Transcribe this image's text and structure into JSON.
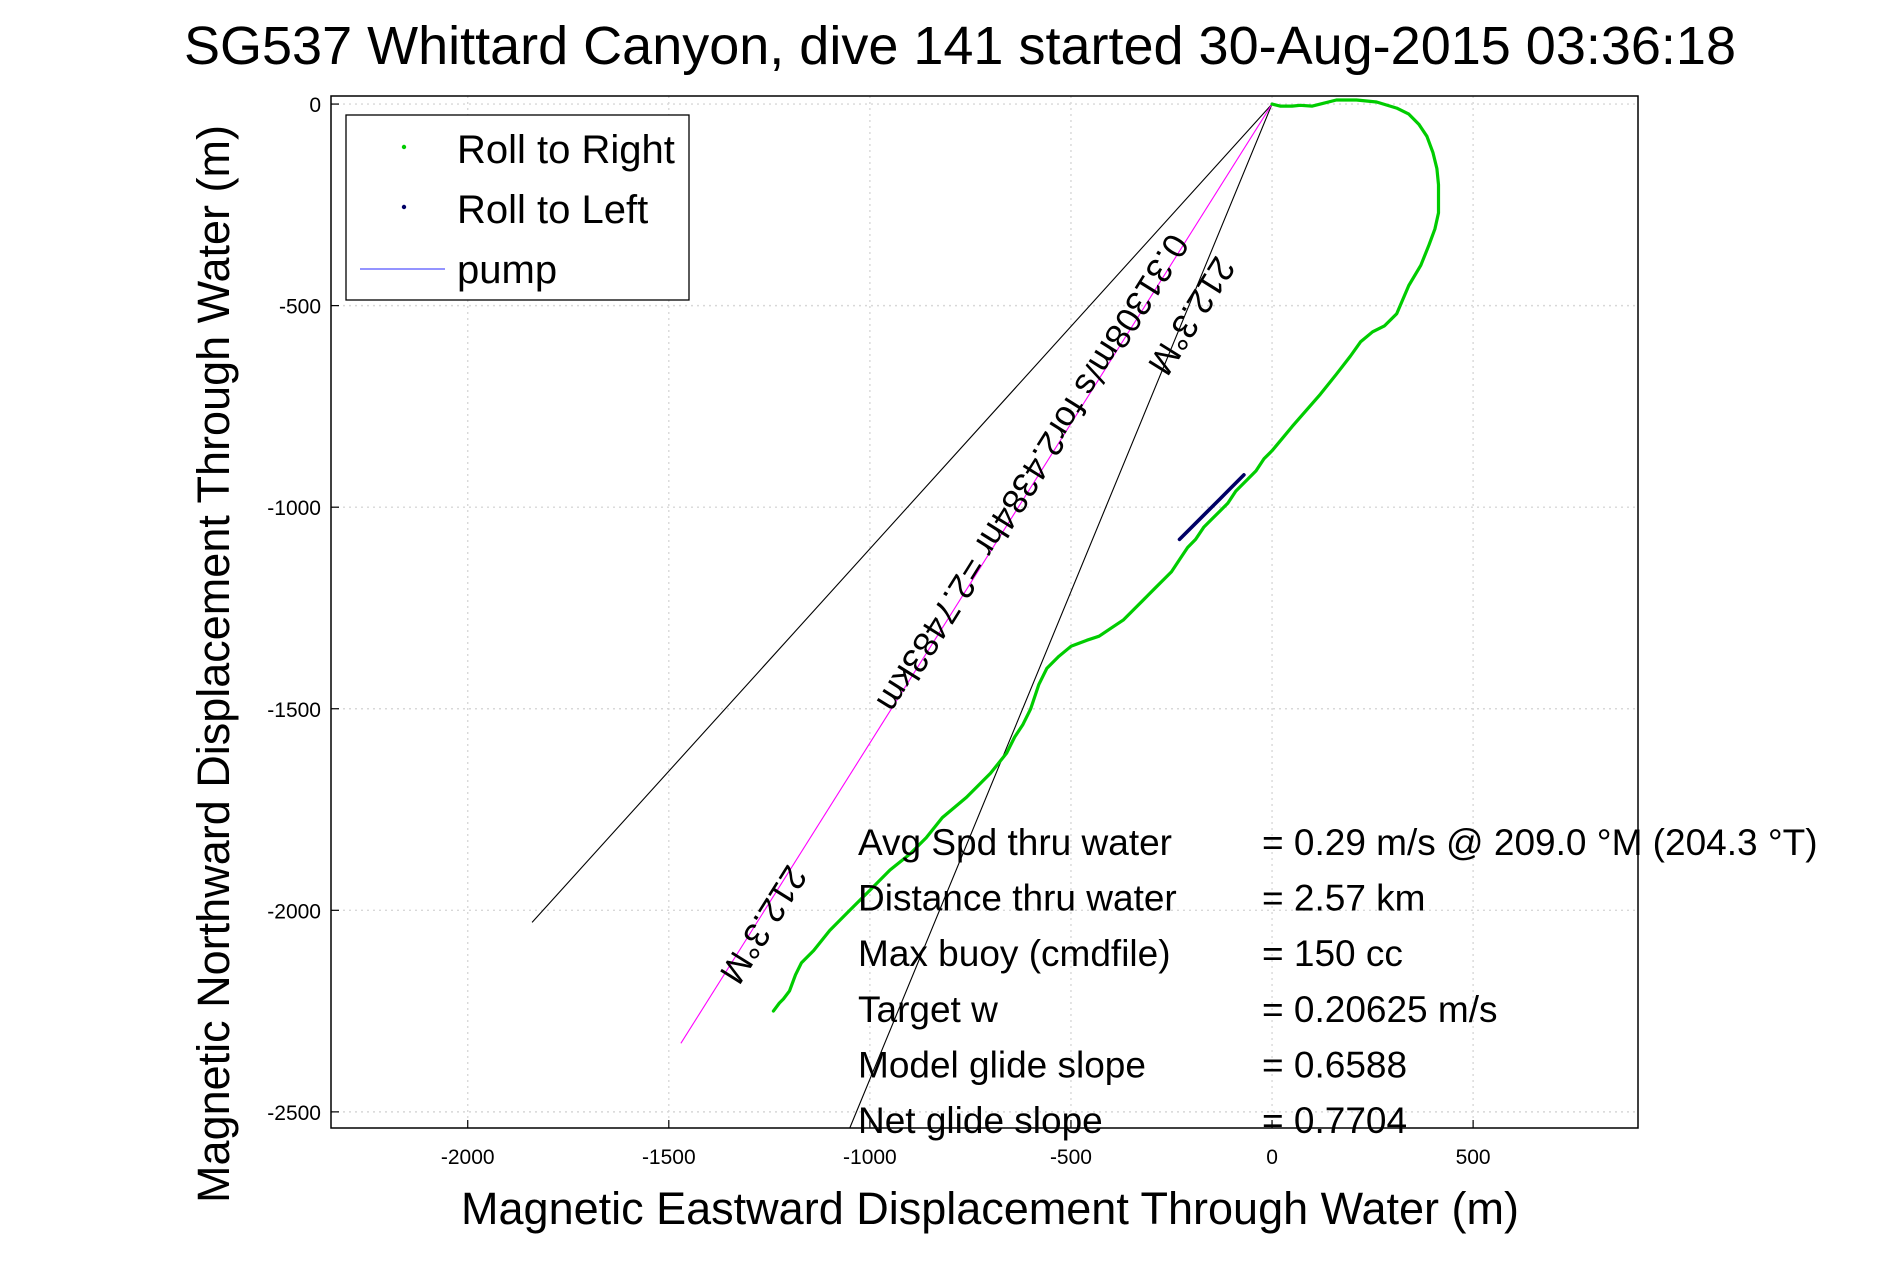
{
  "chart_data": {
    "type": "line",
    "title": "SG537 Whittard Canyon, dive 141 started 30-Aug-2015 03:36:18",
    "xlabel": "Magnetic Eastward Displacement Through Water (m)",
    "ylabel": "Magnetic Northward Displacement Through Water (m)",
    "xlim": [
      -2340,
      910
    ],
    "ylim": [
      -2540,
      20
    ],
    "xticks": [
      -2000,
      -1500,
      -1000,
      -500,
      0,
      500
    ],
    "yticks": [
      0,
      -500,
      -1000,
      -1500,
      -2000,
      -2500
    ],
    "grid": true,
    "legend_position": "top-left",
    "legend": [
      {
        "label": "Roll to Right",
        "color": "#00cc00",
        "marker": "dot"
      },
      {
        "label": "Roll to Left",
        "color": "#000066",
        "marker": "dot"
      },
      {
        "label": "pump",
        "color": "#7070ff",
        "marker": "line"
      }
    ],
    "series": [
      {
        "name": "Roll to Right",
        "color": "#00cc00",
        "x": [
          0,
          20,
          50,
          70,
          100,
          120,
          160,
          210,
          260,
          310,
          340,
          365,
          385,
          400,
          410,
          414,
          414,
          405,
          390,
          370,
          340,
          310,
          280,
          250,
          220,
          195,
          160,
          120,
          85,
          50,
          25,
          0,
          -20,
          -40,
          -60,
          -90,
          -110,
          -130,
          -150,
          -170,
          -190,
          -210,
          -230,
          -250,
          -270,
          -290,
          -310,
          -340,
          -370,
          -400,
          -430,
          -460,
          -500,
          -530,
          -560,
          -580,
          -600,
          -620,
          -640,
          -660,
          -700,
          -760,
          -820,
          -860,
          -900,
          -950,
          -1000,
          -1050,
          -1100,
          -1140,
          -1170,
          -1185,
          -1200,
          -1215,
          -1225,
          -1240
        ],
        "y": [
          0,
          -5,
          -5,
          -3,
          -5,
          0,
          10,
          10,
          5,
          -10,
          -25,
          -50,
          -80,
          -120,
          -160,
          -200,
          -270,
          -310,
          -350,
          -400,
          -450,
          -520,
          -550,
          -565,
          -590,
          -625,
          -670,
          -720,
          -760,
          -800,
          -830,
          -860,
          -880,
          -910,
          -930,
          -960,
          -990,
          -1010,
          -1030,
          -1050,
          -1080,
          -1100,
          -1130,
          -1160,
          -1180,
          -1200,
          -1220,
          -1250,
          -1280,
          -1300,
          -1320,
          -1330,
          -1345,
          -1370,
          -1400,
          -1440,
          -1500,
          -1540,
          -1570,
          -1610,
          -1660,
          -1720,
          -1770,
          -1820,
          -1860,
          -1900,
          -1950,
          -2000,
          -2050,
          -2100,
          -2130,
          -2160,
          -2200,
          -2220,
          -2230,
          -2250
        ]
      },
      {
        "name": "Roll to Left",
        "color": "#000066",
        "x": [
          -70,
          -100,
          -130,
          -160,
          -190,
          -230
        ],
        "y": [
          -920,
          -950,
          -980,
          -1010,
          -1040,
          -1080
        ]
      }
    ],
    "heading_lines": [
      {
        "color": "#000000",
        "x": [
          0,
          -1840
        ],
        "y": [
          0,
          -2030
        ]
      },
      {
        "color": "#000000",
        "x": [
          0,
          -1050
        ],
        "y": [
          0,
          -2540
        ]
      },
      {
        "color": "#ff00ff",
        "x": [
          0,
          -1470
        ],
        "y": [
          0,
          -2330
        ]
      }
    ],
    "rotated_labels": [
      {
        "text": "212.3°M",
        "x": -225,
        "y": -510,
        "angle": 122
      },
      {
        "text": "0.31308m/s for2.4384hr =2.7483km",
        "x": -620,
        "y": -900,
        "angle": 122
      },
      {
        "text": "212.3°M",
        "x": -1290,
        "y": -2020,
        "angle": 122
      }
    ],
    "annotations": [
      {
        "label": "Avg Spd thru water",
        "value": "=  0.29 m/s @ 209.0 °M (204.3 °T)"
      },
      {
        "label": "Distance thru water",
        "value": "=  2.57 km"
      },
      {
        "label": "Max buoy (cmdfile)",
        "value": "= 150 cc"
      },
      {
        "label": "Target w",
        "value": "= 0.20625 m/s"
      },
      {
        "label": "Model glide slope",
        "value": "= 0.6588"
      },
      {
        "label": "Net glide slope",
        "value": "= 0.7704"
      }
    ]
  }
}
